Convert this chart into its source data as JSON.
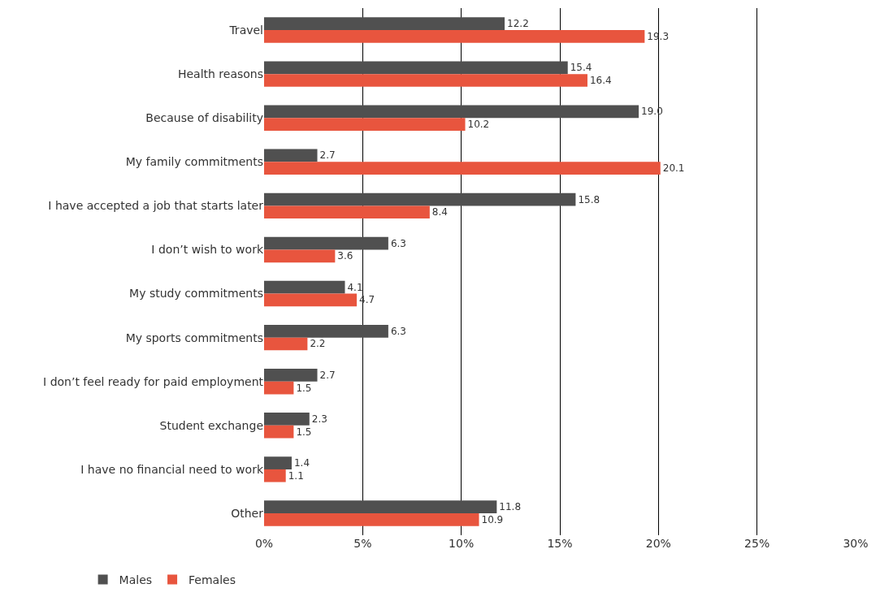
{
  "chart_data": {
    "type": "bar",
    "orientation": "horizontal",
    "categories": [
      "Travel",
      "Health reasons",
      "Because of disability",
      "My family commitments",
      "I have accepted a job that starts later",
      "I don’t wish to work",
      "My study commitments",
      "My sports commitments",
      "I don’t feel ready for paid employment",
      "Student exchange",
      "I have no financial need to work",
      "Other"
    ],
    "series": [
      {
        "name": "Males",
        "color": "#505050",
        "values": [
          12.2,
          15.4,
          19.0,
          2.7,
          15.8,
          6.3,
          4.1,
          6.3,
          2.7,
          2.3,
          1.4,
          11.8
        ],
        "value_labels": [
          "12.2",
          "15.4",
          "19.0",
          "2.7",
          "15.8",
          "6.3",
          "4.1",
          "6.3",
          "2.7",
          "2.3",
          "1.4",
          "11.8"
        ]
      },
      {
        "name": "Females",
        "color": "#e8553e",
        "values": [
          19.3,
          16.4,
          10.2,
          20.1,
          8.4,
          3.6,
          4.7,
          2.2,
          1.5,
          1.5,
          1.1,
          10.9
        ],
        "value_labels": [
          "19.3",
          "16.4",
          "10.2",
          "20.1",
          "8.4",
          "3.6",
          "4.7",
          "2.2",
          "1.5",
          "1.5",
          "1.1",
          "10.9"
        ]
      }
    ],
    "xlim": [
      0,
      30
    ],
    "xticks": [
      {
        "value": 0,
        "label": "0%"
      },
      {
        "value": 5,
        "label": "5%"
      },
      {
        "value": 10,
        "label": "10%"
      },
      {
        "value": 15,
        "label": "15%"
      },
      {
        "value": 20,
        "label": "20%"
      },
      {
        "value": 25,
        "label": "25%"
      },
      {
        "value": 30,
        "label": "30%"
      }
    ],
    "grid": "x",
    "legend": "bottom left"
  }
}
